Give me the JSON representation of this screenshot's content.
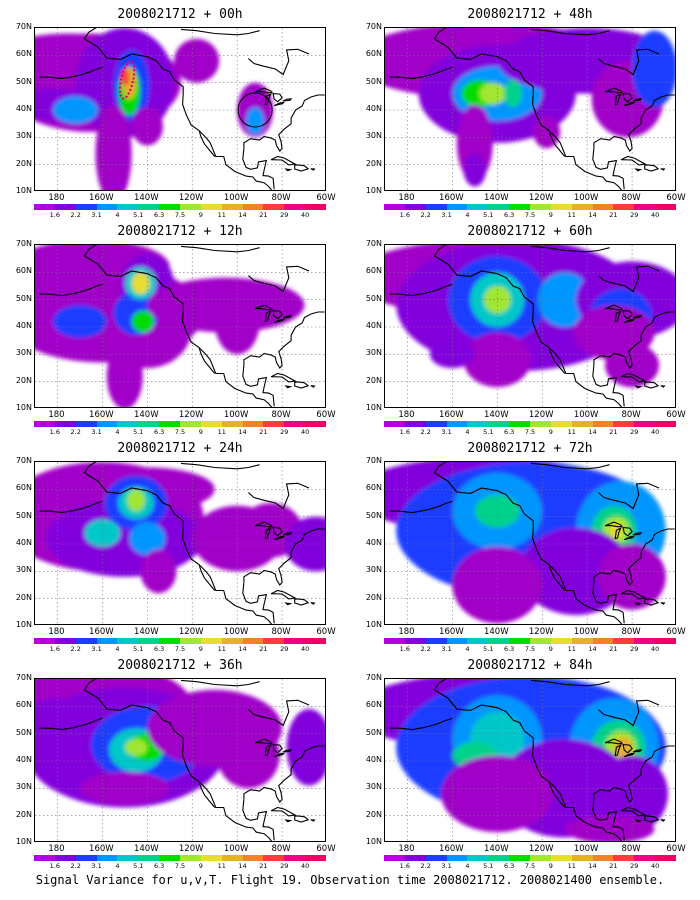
{
  "caption": "Signal Variance for u,v,T. Flight 19. Observation time 2008021712. 2008021400 ensemble.",
  "colorbar": {
    "labels": [
      "1.6",
      "2.2",
      "3.1",
      "4",
      "5.1",
      "6.3",
      "7.5",
      "9",
      "11",
      "14",
      "21",
      "29",
      "40"
    ],
    "colors": [
      "#a000c8",
      "#8200dc",
      "#1e3cff",
      "#0096ff",
      "#00c8c8",
      "#00d28c",
      "#00dc00",
      "#a0e632",
      "#e6dc32",
      "#e6af2d",
      "#f08228",
      "#fa3c3c",
      "#f00082"
    ]
  },
  "axes": {
    "y_ticks": [
      "70N",
      "60N",
      "50N",
      "40N",
      "30N",
      "20N",
      "10N"
    ],
    "x_ticks": [
      "180",
      "160W",
      "140W",
      "120W",
      "100W",
      "80W",
      "60W"
    ]
  },
  "chart_data": {
    "type": "heatmap",
    "variable": "Signal Variance for u,v,T",
    "xlim": [
      -190,
      -60
    ],
    "ylim": [
      10,
      70
    ],
    "panels": [
      {
        "title": "2008021712 + 00h",
        "forecast_hour": 0,
        "max_level": "29"
      },
      {
        "title": "2008021712 + 12h",
        "forecast_hour": 12,
        "max_level": "11"
      },
      {
        "title": "2008021712 + 24h",
        "forecast_hour": 24,
        "max_level": "11"
      },
      {
        "title": "2008021712 + 36h",
        "forecast_hour": 36,
        "max_level": "9"
      },
      {
        "title": "2008021712 + 48h",
        "forecast_hour": 48,
        "max_level": "11"
      },
      {
        "title": "2008021712 + 60h",
        "forecast_hour": 60,
        "max_level": "11"
      },
      {
        "title": "2008021712 + 72h",
        "forecast_hour": 72,
        "max_level": "11"
      },
      {
        "title": "2008021712 + 84h",
        "forecast_hour": 84,
        "max_level": "14"
      }
    ]
  }
}
